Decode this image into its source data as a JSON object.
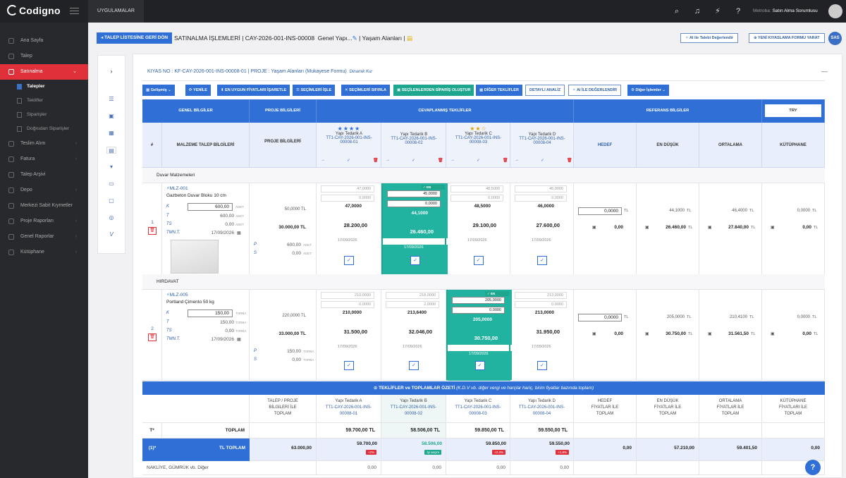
{
  "app": {
    "brand": "Codigno",
    "apps_label": "UYGULAMALAR",
    "method_label": "Metroba:",
    "user_role": "Satın Alma Sorumlusu",
    "avatar_initials": "SAS"
  },
  "sidebar": {
    "items": [
      {
        "label": "Ana Sayfa",
        "icon": "home-icon"
      },
      {
        "label": "Talep",
        "icon": "request-icon"
      },
      {
        "label": "Satınalma",
        "icon": "cart-icon",
        "active": true
      },
      {
        "label": "Teslim Alım",
        "icon": "truck-icon"
      },
      {
        "label": "Fatura",
        "icon": "invoice-icon"
      },
      {
        "label": "Talep Arşivi",
        "icon": "archive-icon"
      },
      {
        "label": "Depo",
        "icon": "warehouse-icon"
      },
      {
        "label": "Merkezi Sabit Kıymetler",
        "icon": "asset-icon"
      },
      {
        "label": "Proje Raporları",
        "icon": "report-icon"
      },
      {
        "label": "Genel Raporlar",
        "icon": "chart-icon"
      },
      {
        "label": "Kütüphane",
        "icon": "library-icon"
      }
    ],
    "subitems": [
      {
        "label": "Talepler",
        "active": true
      },
      {
        "label": "Teklifler"
      },
      {
        "label": "Siparişler"
      },
      {
        "label": "Doğrudan Siparişler"
      }
    ]
  },
  "header": {
    "back_label": "TALEP LİSTESİNE GERİ DÖN",
    "title": "SATINALMA İŞLEMLERİ | CAY-2026-001-INS-00008",
    "title_suffix_1": "Genel Yapı...",
    "title_suffix_2": "| Yaşam Alanları |",
    "ai_button": "AI ile Talebi Değerlendir",
    "new_form_button": "YENİ KIYASLAMA FORMU YARAT"
  },
  "kiyas": {
    "title": "KIYAS NO : KF-CAY-2026-001-INS-00008-01 | PROJE : Yaşam Alanları  (Mukayese Formu)",
    "mode": "Dinamik Kur"
  },
  "toolbar": {
    "gelismis": "Gelişmiş",
    "yenile": "YENİLE",
    "en_uygun": "EN UYGUN FİYATLARI İŞARETLE",
    "secimleri_isle": "SEÇİMLERİ İŞLE",
    "secimleri_sifirla": "SEÇİMLERİ SIFIRLA",
    "siparis": "SEÇİLENLERDEN SİPARİŞ OLUŞTUR",
    "diger_teklifler": "DİĞER TEKLİFLER",
    "detayli": "DETAYLI ANALİZ",
    "ai_ile": "AI İLE DEĞERLENDİR",
    "diger_islemler": "Diğer İşlemler"
  },
  "table": {
    "h_genel": "GENEL BİLGİLER",
    "h_proje": "PROJE BİLGİLERİ",
    "h_cevap": "CEVAPLANMIŞ TEKLİFLER",
    "h_ref": "REFERANS BİLGİLER",
    "currency": "TRY",
    "c_hash": "#",
    "c_malzeme": "MALZEME TALEP BİLGİLERİ",
    "c_proje": "PROJE BİLGİLERİ",
    "c_hedef": "HEDEF",
    "c_endusuk": "EN DÜŞÜK",
    "c_ortalama": "ORTALAMA",
    "c_kutuphane": "KÜTÜPHANE",
    "suppliers": [
      {
        "name": "Yapı Tedarik A",
        "code": "TT1-CAY-2026-001-INS-00008-01",
        "stars": "★★★★",
        "yellow": false
      },
      {
        "name": "Yapı Tedarik B",
        "code": "TT1-CAY-2026-001-INS-00008-02",
        "stars": "",
        "yellow": false
      },
      {
        "name": "Yapı Tedarik C",
        "code": "TT1-CAY-2026-001-INS-00008-03",
        "stars": "★★☆",
        "yellow": true
      },
      {
        "name": "Yapı Tedarik D",
        "code": "TT1-CAY-2026-001-INS-00008-04",
        "stars": "",
        "yellow": false
      }
    ]
  },
  "groups": [
    {
      "title": "Duvar Malzemeleri",
      "row_no": "1",
      "code": "MLZ-001",
      "name": "Gazbeton Duvar Bloku 10 cm",
      "k_label": "K",
      "k_value": "600,00",
      "unit": "ADET",
      "t_label": "T",
      "t_value": "600,00",
      "ts_label": "TS",
      "ts_value": "0,00",
      "tmn_label": "TMN.T.",
      "tmn_date": "17/09/2026",
      "proj_price": "50,0000 TL",
      "proj_total": "30.000,00 TL",
      "p_label": "P",
      "p_value": "600,00",
      "s_label": "S",
      "s_value": "0,00",
      "best": 1,
      "offers": [
        {
          "v1": "47,0000",
          "v2": "0,0000",
          "price": "47,0000",
          "total": "28.200,00",
          "date": "17/09/2026"
        },
        {
          "v1": "45,0000",
          "v2": "0,0000",
          "price": "44,1000",
          "total": "26.460,00",
          "date": "17/09/2026"
        },
        {
          "v1": "48,5000",
          "v2": "0,0000",
          "price": "48,5000",
          "total": "29.100,00",
          "date": "17/09/2026"
        },
        {
          "v1": "46,0000",
          "v2": "0,0000",
          "price": "46,0000",
          "total": "27.600,00",
          "date": "17/09/2026"
        }
      ],
      "hedef": "0,0000",
      "hedef_total": "0,00",
      "min": "44,1000",
      "min_total": "26.460,00",
      "avg": "46,4000",
      "avg_total": "27.840,00",
      "lib": "0,0000",
      "lib_total": "0,00"
    },
    {
      "title": "HIRDAVAT",
      "row_no": "2",
      "code": "MLZ-005",
      "name": "Portland Çimento 50 kg",
      "k_label": "K",
      "k_value": "150,00",
      "unit": "TORBA",
      "t_label": "T",
      "t_value": "150,00",
      "ts_label": "TS",
      "ts_value": "0,00",
      "tmn_label": "TMN.T.",
      "tmn_date": "17/09/2026",
      "proj_price": "220,0000 TL",
      "proj_total": "33.000,00 TL",
      "p_label": "P",
      "p_value": "150,00",
      "s_label": "S",
      "s_value": "0,00",
      "best": 2,
      "offers": [
        {
          "v1": "210,0000",
          "v2": "0,0000",
          "price": "210,0000",
          "total": "31.500,00",
          "date": "17/09/2026"
        },
        {
          "v1": "218,0000",
          "v2": "2,0000",
          "price": "213,6400",
          "total": "32.046,00",
          "date": "17/09/2026"
        },
        {
          "v1": "205,0000",
          "v2": "0,0000",
          "price": "205,0000",
          "total": "30.750,00",
          "date": "17/09/2026"
        },
        {
          "v1": "213,0000",
          "v2": "0,0000",
          "price": "213,0000",
          "total": "31.950,00",
          "date": "17/09/2026"
        }
      ],
      "hedef": "0,0000",
      "hedef_total": "0,00",
      "min": "205,0000",
      "min_total": "30.750,00",
      "avg": "210,4100",
      "avg_total": "31.561,50",
      "lib": "0,0000",
      "lib_total": "0,00"
    }
  ],
  "labels": {
    "best_badge": "EN UYGUN",
    "tl": "TL"
  },
  "summary": {
    "title": "TEKLİFLER ve TOPLAMLAR ÖZETİ",
    "subtitle": "(K.D.V vb. diğer vergi ve harçlar hariç, birim fiyatlar bazında toplam)",
    "col_talep": "TALEP / PROJE BİLGİLERİ İLE TOPLAM",
    "col_hedef": "HEDEF FİYATLAR İLE TOPLAM",
    "col_endusuk": "EN DÜŞÜK FİYATLAR İLE TOPLAM",
    "col_ortalama": "ORTALAMA FİYATLAR İLE TOPLAM",
    "col_kutuphane": "KÜTÜPHANE FİYATLARI İLE TOPLAM",
    "row_t_label": "T*",
    "row_t_title": "TOPLAM",
    "row_t_values": [
      "59.700,00",
      "58.506,00",
      "59.850,00",
      "59.550,00"
    ],
    "row_tl_label": "(1)*",
    "row_tl_title": "TL TOPLAM",
    "row_tl_talep": "63.000,00",
    "row_tl_values": [
      "59.700,00",
      "58.506,00",
      "59.850,00",
      "59.550,00"
    ],
    "row_tl_pills": [
      "+2%",
      "İyi seçim",
      "+2.3%",
      "+1.8%"
    ],
    "row_tl_hedef": "0,00",
    "row_tl_min": "57.210,00",
    "row_tl_avg": "59.401,50",
    "row_tl_lib": "0,00",
    "row_nak_label": "NAKLİYE, GÜMRÜK vb. Diğer",
    "row_nak_values": [
      "0,00",
      "0,00",
      "0,00",
      "0,00"
    ]
  }
}
